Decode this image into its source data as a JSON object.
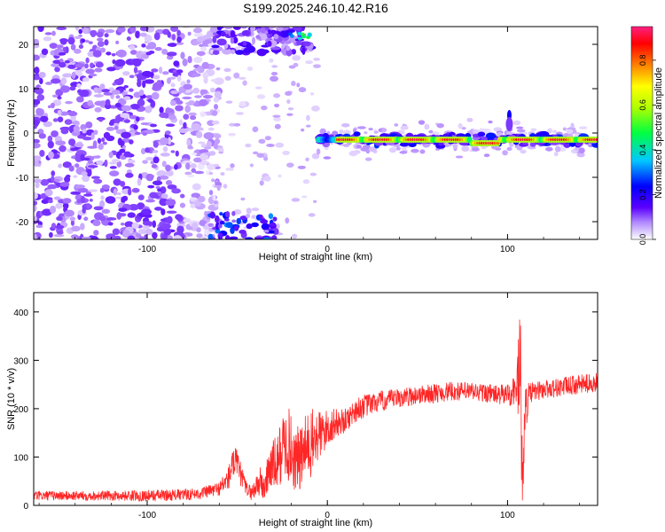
{
  "title": "S199.2025.246.10.42.R16",
  "chart_data": [
    {
      "type": "heatmap",
      "title": "S199.2025.246.10.42.R16",
      "xlabel": "Height of straight line (km)",
      "ylabel": "Frequency (Hz)",
      "xlim": [
        -163,
        150
      ],
      "ylim": [
        -24,
        24
      ],
      "x_ticks": [
        -100,
        0,
        100
      ],
      "y_ticks": [
        -20,
        -10,
        0,
        10,
        20
      ],
      "colorbar": {
        "label": "Normalized spectral amplitude",
        "range": [
          0,
          0.95
        ],
        "ticks": [
          0.0,
          0.2,
          0.4,
          0.6,
          0.8
        ],
        "tick_labels": [
          "0.0",
          "0.2",
          "0.4",
          "0.6",
          "0.8"
        ],
        "colors": [
          "#ffffff",
          "#9a60ff",
          "#5000ff",
          "#0000ff",
          "#00c8ff",
          "#00ff40",
          "#ffff00",
          "#ff8000",
          "#ff0000",
          "#ff2080"
        ]
      },
      "features": [
        {
          "name": "noise-region",
          "x_range": [
            -163,
            -68
          ],
          "y_range": [
            -24,
            24
          ],
          "amplitude": 0.12
        },
        {
          "name": "signal-ridge",
          "x_range": [
            -5,
            150
          ],
          "frequency_hz": -1.5,
          "peak_amplitude": 0.9
        },
        {
          "name": "upper-burst",
          "x_range": [
            -65,
            -8
          ],
          "frequency_hz": 22,
          "peak_amplitude": 0.55
        },
        {
          "name": "lower-burst",
          "x_range": [
            -65,
            -28
          ],
          "frequency_hz": -22,
          "peak_amplitude": 0.35
        },
        {
          "name": "spike-100km",
          "x": 101,
          "frequency_hz": 4,
          "peak_amplitude": 0.3
        }
      ]
    },
    {
      "type": "line",
      "xlabel": "Height of straight line (km)",
      "ylabel": "SNR (10 * v/v)",
      "xlim": [
        -163,
        150
      ],
      "ylim": [
        0,
        440
      ],
      "x_ticks": [
        -100,
        0,
        100
      ],
      "y_ticks": [
        0,
        100,
        200,
        300,
        400
      ],
      "series": [
        {
          "name": "SNR",
          "color": "#ff0000",
          "x": [
            -163,
            -140,
            -120,
            -100,
            -80,
            -70,
            -60,
            -55,
            -52,
            -50,
            -47,
            -45,
            -42,
            -38,
            -35,
            -32,
            -28,
            -25,
            -22,
            -18,
            -15,
            -12,
            -8,
            -5,
            -2,
            0,
            5,
            10,
            15,
            20,
            25,
            30,
            40,
            50,
            60,
            70,
            80,
            90,
            95,
            100,
            103,
            105,
            107,
            108,
            110,
            112,
            115,
            120,
            130,
            140,
            150
          ],
          "values": [
            20,
            20,
            20,
            20,
            22,
            25,
            35,
            55,
            90,
            80,
            55,
            35,
            25,
            50,
            35,
            80,
            85,
            120,
            130,
            95,
            95,
            115,
            130,
            145,
            150,
            160,
            170,
            175,
            195,
            205,
            210,
            215,
            222,
            228,
            232,
            236,
            235,
            232,
            228,
            230,
            235,
            240,
            300,
            60,
            200,
            230,
            235,
            240,
            245,
            250,
            255
          ],
          "noise_amplitude": [
            10,
            10,
            10,
            12,
            12,
            12,
            15,
            25,
            35,
            35,
            20,
            15,
            15,
            35,
            30,
            50,
            60,
            70,
            80,
            70,
            70,
            75,
            70,
            60,
            45,
            40,
            30,
            25,
            25,
            25,
            22,
            22,
            20,
            20,
            20,
            20,
            20,
            20,
            20,
            25,
            30,
            50,
            140,
            90,
            50,
            25,
            20,
            20,
            20,
            20,
            20
          ]
        }
      ]
    }
  ]
}
